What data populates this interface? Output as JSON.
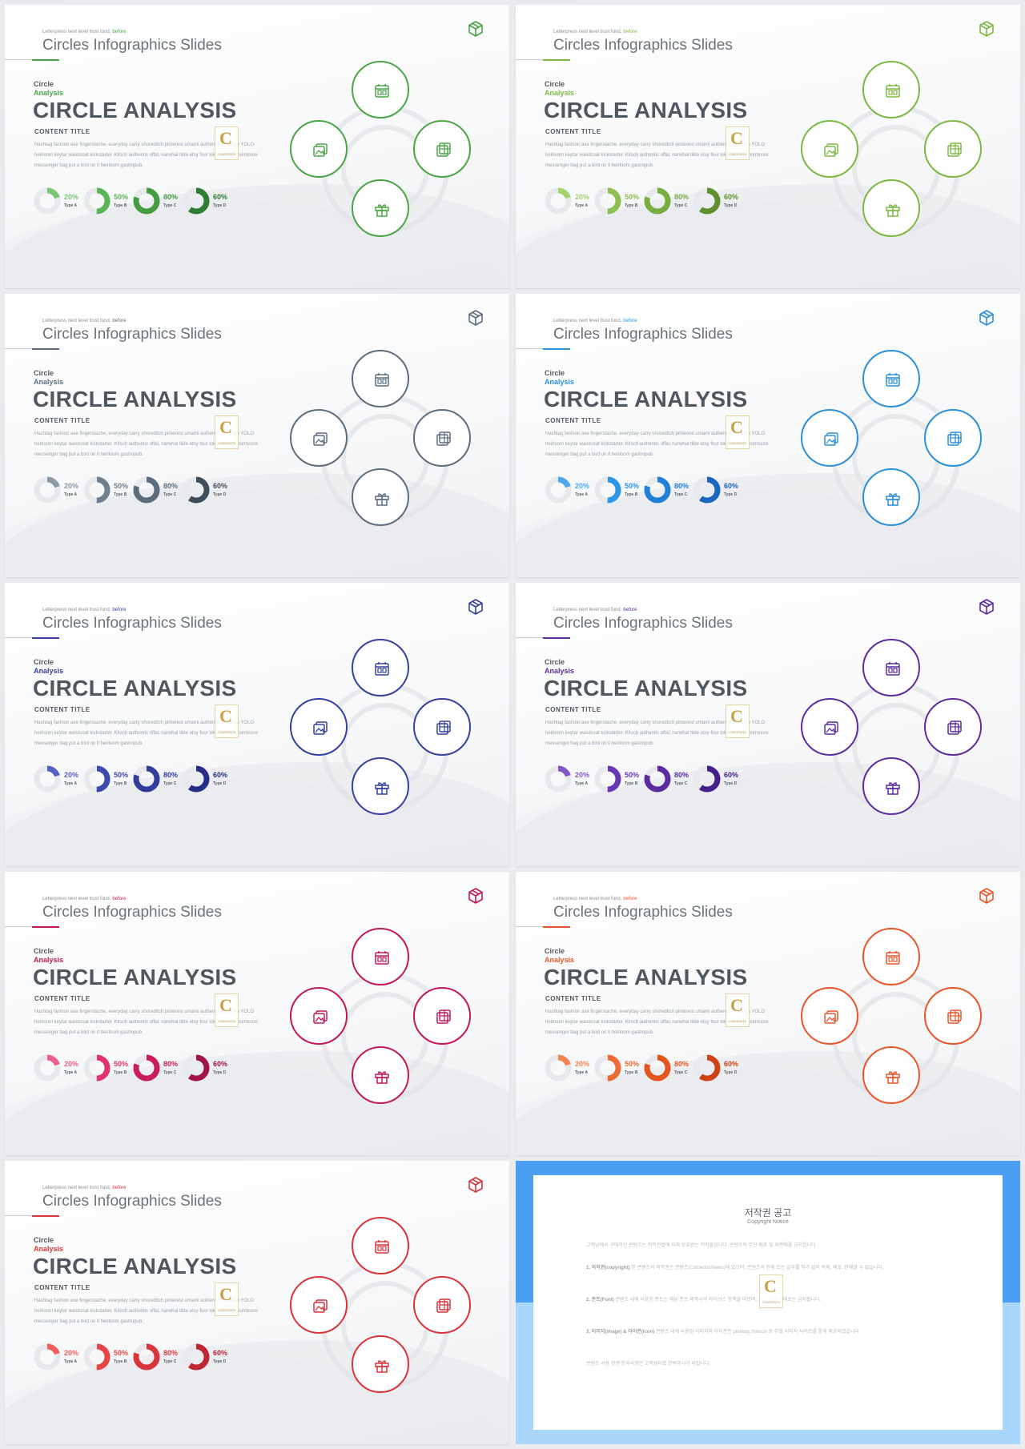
{
  "slide_common": {
    "note_text": "Letterpress next level trust fund,",
    "note_highlight": "before",
    "slide_title": "Circles Infographics Slides",
    "label_circle": "Circle",
    "label_analysis": "Analysis",
    "main_title": "CIRCLE ANALYSIS",
    "content_title": "CONTENT TITLE",
    "body_text": "Hashtag fashion axe fingerstache, everyday carry shoreditch pinterest umami authentic brooklyn YOLO heirloom keytar waistcoat kickstarter. Kitsch authentic offal, narwhal tilde etsy four loko selvage normcore messenger bag put a bird on it heirloom gastropub.",
    "watermark_letter": "C",
    "watermark_text": "CONTENTS",
    "stats": [
      {
        "value": "20%",
        "fraction": 0.2,
        "type": "Type A"
      },
      {
        "value": "50%",
        "fraction": 0.5,
        "type": "Type B"
      },
      {
        "value": "80%",
        "fraction": 0.8,
        "type": "Type C"
      },
      {
        "value": "60%",
        "fraction": 0.6,
        "type": "Type D"
      }
    ],
    "nodes": [
      {
        "name": "top",
        "icon": "calendar-icon"
      },
      {
        "name": "left",
        "icon": "gallery-icon"
      },
      {
        "name": "right",
        "icon": "layers-icon"
      },
      {
        "name": "bottom",
        "icon": "gift-icon"
      }
    ]
  },
  "slides": [
    {
      "accent": "#4aa547",
      "shades": [
        "#7ac877",
        "#5bb558",
        "#449e41",
        "#2e7d32"
      ]
    },
    {
      "accent": "#7db843",
      "shades": [
        "#a3d36b",
        "#8cc152",
        "#78ad3f",
        "#5f8f2e"
      ]
    },
    {
      "accent": "#5d6d7e",
      "shades": [
        "#8c9aa8",
        "#71808f",
        "#5d6d7e",
        "#3f4e5c"
      ]
    },
    {
      "accent": "#2b8fd9",
      "shades": [
        "#4aa8f0",
        "#2b95e8",
        "#1e80d6",
        "#1667bd"
      ]
    },
    {
      "accent": "#36409e",
      "shades": [
        "#5560c0",
        "#3e49ad",
        "#333d9c",
        "#262e85"
      ]
    },
    {
      "accent": "#5b2ca0",
      "shades": [
        "#8456c6",
        "#6a38b4",
        "#5b2ca0",
        "#46208a"
      ]
    },
    {
      "accent": "#c2185b",
      "shades": [
        "#ec5f8f",
        "#e0336f",
        "#c91c5c",
        "#a3124a"
      ]
    },
    {
      "accent": "#e8562a",
      "shades": [
        "#f48451",
        "#ee6a35",
        "#e4551f",
        "#cd4314"
      ]
    },
    {
      "accent": "#d9343b",
      "shades": [
        "#f15e5e",
        "#e74545",
        "#d8363a",
        "#bf2630"
      ]
    }
  ],
  "copyright": {
    "title": "저작권 공고",
    "subtitle": "Copyright Notice",
    "intro": "고객님께서 구매하신 콘텐츠는 저작권법에 의해 보호받는 저작물입니다. 콘텐츠의 무단 배포 및 재판매를 금지합니다.",
    "p1_label": "1. 저작권(copyright)",
    "p1": "본 콘텐츠의 저작권은 콘텐츠(ContentsViewer)에 있으며, 콘텐츠의 전체 또는 일부를 허가 없이 복제, 배포, 판매할 수 없습니다.",
    "p2_label": "2. 폰트(Font)",
    "p2": "콘텐츠 내에 사용된 폰트는 해당 폰트 제작사의 라이선스 정책을 따르며, 폰트 파일 재배포는 금지됩니다.",
    "p3_label": "3. 이미지(Image) & 아이콘(Icon)",
    "p3": "콘텐츠 내에 사용된 이미지와 아이콘은 pixabay, flaticon 등 무료 이미지 사이트를 통해 제공되었습니다.",
    "outro": "콘텐츠 사용 관련 문의사항은 고객센터로 연락주시기 바랍니다."
  }
}
